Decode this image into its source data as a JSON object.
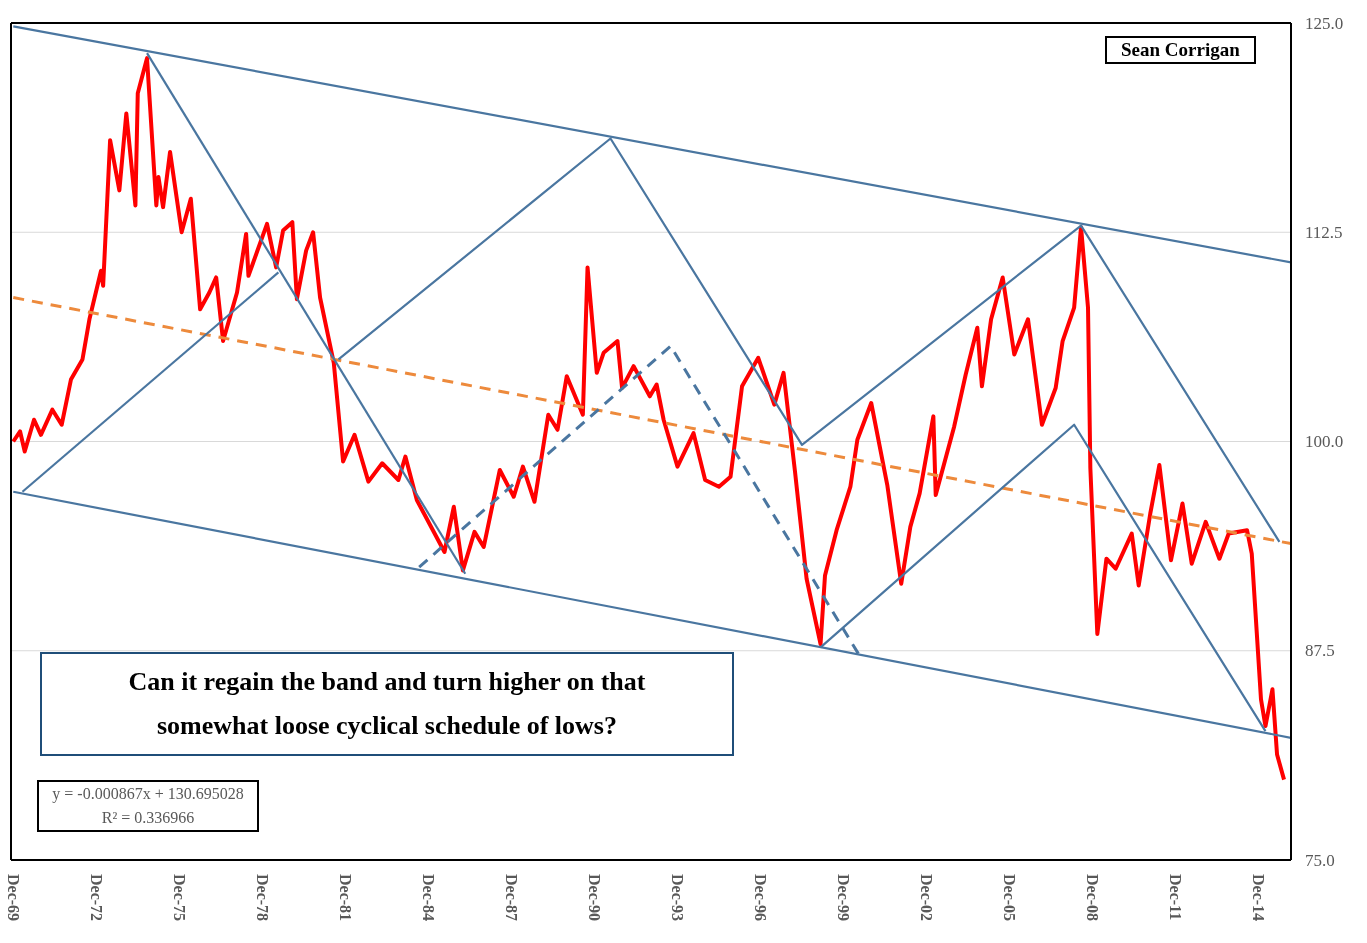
{
  "chart_data": {
    "type": "line",
    "annotations": [
      "Sean Corrigan",
      "Can it regain the band and turn higher on that somewhat loose cyclical schedule of lows?",
      "y = -0.000867x + 130.695028",
      "R² = 0.336966"
    ],
    "series": [
      {
        "color": "#ff0000",
        "x": [
          "1969-12",
          "1970-03",
          "1970-05",
          "1970-09",
          "1970-12",
          "1971-05",
          "1971-09",
          "1972-01",
          "1972-06",
          "1972-09",
          "1973-02",
          "1973-03",
          "1973-06",
          "1973-10",
          "1974-01",
          "1974-05",
          "1974-06",
          "1974-10",
          "1975-02",
          "1975-03",
          "1975-05",
          "1975-08",
          "1976-01",
          "1976-05",
          "1976-09",
          "1977-01",
          "1977-04",
          "1977-07",
          "1978-01",
          "1978-05",
          "1978-06",
          "1979-02",
          "1979-06",
          "1979-09",
          "1980-01",
          "1980-03",
          "1980-07",
          "1980-10",
          "1981-01",
          "1981-07",
          "1981-11",
          "1982-04",
          "1982-10",
          "1983-04",
          "1983-11",
          "1984-02",
          "1984-07",
          "1985-07",
          "1985-11",
          "1986-03",
          "1986-08",
          "1986-12",
          "1987-07",
          "1988-01",
          "1988-05",
          "1988-10",
          "1989-04",
          "1989-08",
          "1989-12",
          "1990-07",
          "1990-09",
          "1991-01",
          "1991-04",
          "1991-10",
          "1991-12",
          "1992-05",
          "1992-12",
          "1993-03",
          "1993-06",
          "1993-12",
          "1994-07",
          "1994-12",
          "1995-06",
          "1995-11",
          "1996-04",
          "1996-11",
          "1997-06",
          "1997-10",
          "1998-03",
          "1998-08",
          "1999-02",
          "1999-04",
          "1999-09",
          "2000-03",
          "2000-06",
          "2000-12",
          "2001-07",
          "2002-01",
          "2002-05",
          "2002-09",
          "2003-03",
          "2003-04",
          "2003-12",
          "2004-05",
          "2004-10",
          "2004-12",
          "2005-04",
          "2005-09",
          "2006-02",
          "2006-08",
          "2007-02",
          "2007-08",
          "2007-11",
          "2008-04",
          "2008-07",
          "2008-10",
          "2008-11",
          "2009-02",
          "2009-06",
          "2009-10",
          "2010-05",
          "2010-08",
          "2011-01",
          "2011-05",
          "2011-10",
          "2012-03",
          "2012-07",
          "2013-01",
          "2013-07",
          "2013-11",
          "2014-07",
          "2014-09",
          "2015-01",
          "2015-03",
          "2015-06",
          "2015-08",
          "2015-11"
        ],
        "values": [
          100.0,
          100.6,
          99.4,
          101.3,
          100.4,
          101.9,
          101.0,
          103.7,
          104.9,
          107.3,
          110.2,
          109.3,
          118.0,
          115.0,
          119.6,
          114.1,
          120.8,
          122.9,
          114.1,
          115.8,
          114.0,
          117.3,
          112.5,
          114.5,
          107.9,
          108.9,
          109.8,
          106.0,
          108.9,
          112.4,
          109.9,
          113.0,
          110.4,
          112.6,
          113.1,
          108.5,
          111.4,
          112.5,
          108.6,
          104.7,
          98.8,
          100.4,
          97.6,
          98.7,
          97.7,
          99.1,
          96.5,
          93.4,
          96.1,
          92.3,
          94.6,
          93.7,
          98.3,
          96.7,
          98.5,
          96.4,
          101.6,
          100.7,
          103.9,
          101.6,
          110.4,
          104.1,
          105.3,
          106.0,
          103.2,
          104.5,
          102.7,
          103.4,
          101.3,
          98.5,
          100.5,
          97.7,
          97.3,
          97.9,
          103.3,
          105.0,
          102.2,
          104.1,
          98.2,
          91.8,
          87.9,
          92.0,
          94.7,
          97.3,
          100.1,
          102.3,
          97.4,
          91.5,
          94.9,
          96.9,
          101.5,
          96.8,
          100.9,
          104.0,
          106.8,
          103.3,
          107.3,
          109.8,
          105.2,
          107.3,
          101.0,
          103.2,
          106.0,
          108.0,
          112.8,
          108.0,
          98.4,
          88.5,
          93.0,
          92.4,
          94.5,
          91.4,
          95.7,
          98.6,
          92.9,
          96.3,
          92.7,
          95.2,
          93.0,
          94.5,
          94.7,
          93.3,
          84.6,
          83.0,
          85.2,
          81.3,
          79.8
        ]
      },
      {
        "color": "#ed8a3c",
        "line_style": "dashed",
        "x": [
          "1969-12",
          "2016-02"
        ],
        "values": [
          108.6,
          93.9
        ]
      },
      {
        "color": "#4a76a0",
        "x": [
          "1969-12",
          "2016-02"
        ],
        "values": [
          124.8,
          110.7
        ]
      },
      {
        "color": "#4a76a0",
        "x": [
          "1969-12",
          "2016-02"
        ],
        "values": [
          97.0,
          82.3
        ]
      },
      {
        "color": "#4a76a0",
        "x": [
          "1970-04",
          "1979-07"
        ],
        "values": [
          97.0,
          110.1
        ]
      },
      {
        "color": "#4a76a0",
        "x": [
          "1974-10",
          "1986-04"
        ],
        "values": [
          123.2,
          92.1
        ]
      },
      {
        "color": "#4a76a0",
        "x": [
          "1981-09",
          "1991-07",
          "1998-06",
          "2008-07",
          "2015-09"
        ],
        "values": [
          104.9,
          118.1,
          99.8,
          112.9,
          94.0
        ]
      },
      {
        "color": "#4a76a0",
        "x": [
          "1999-02",
          "2008-04",
          "2015-03"
        ],
        "values": [
          87.7,
          101.0,
          82.7
        ]
      },
      {
        "color": "#4a76a0",
        "line_style": "dashed",
        "x": [
          "1984-08",
          "1993-09",
          "2000-07"
        ],
        "values": [
          92.5,
          105.7,
          87.2
        ]
      }
    ],
    "xlim": [
      "1969-11",
      "2016-02"
    ],
    "xticks": [
      {
        "value": "1969-12",
        "label": "Dec-69"
      },
      {
        "value": "1972-12",
        "label": "Dec-72"
      },
      {
        "value": "1975-12",
        "label": "Dec-75"
      },
      {
        "value": "1978-12",
        "label": "Dec-78"
      },
      {
        "value": "1981-12",
        "label": "Dec-81"
      },
      {
        "value": "1984-12",
        "label": "Dec-84"
      },
      {
        "value": "1987-12",
        "label": "Dec-87"
      },
      {
        "value": "1990-12",
        "label": "Dec-90"
      },
      {
        "value": "1993-12",
        "label": "Dec-93"
      },
      {
        "value": "1996-12",
        "label": "Dec-96"
      },
      {
        "value": "1999-12",
        "label": "Dec-99"
      },
      {
        "value": "2002-12",
        "label": "Dec-02"
      },
      {
        "value": "2005-12",
        "label": "Dec-05"
      },
      {
        "value": "2008-12",
        "label": "Dec-08"
      },
      {
        "value": "2011-12",
        "label": "Dec-11"
      },
      {
        "value": "2014-12",
        "label": "Dec-14"
      }
    ],
    "ylim": [
      75,
      125
    ],
    "yticks": [
      {
        "value": 75,
        "label": "75.0"
      },
      {
        "value": 87.5,
        "label": "87.5"
      },
      {
        "value": 100,
        "label": "100.0"
      },
      {
        "value": 112.5,
        "label": "112.5"
      },
      {
        "value": 125,
        "label": "125.0"
      }
    ],
    "grid": "y",
    "marker": "none"
  }
}
